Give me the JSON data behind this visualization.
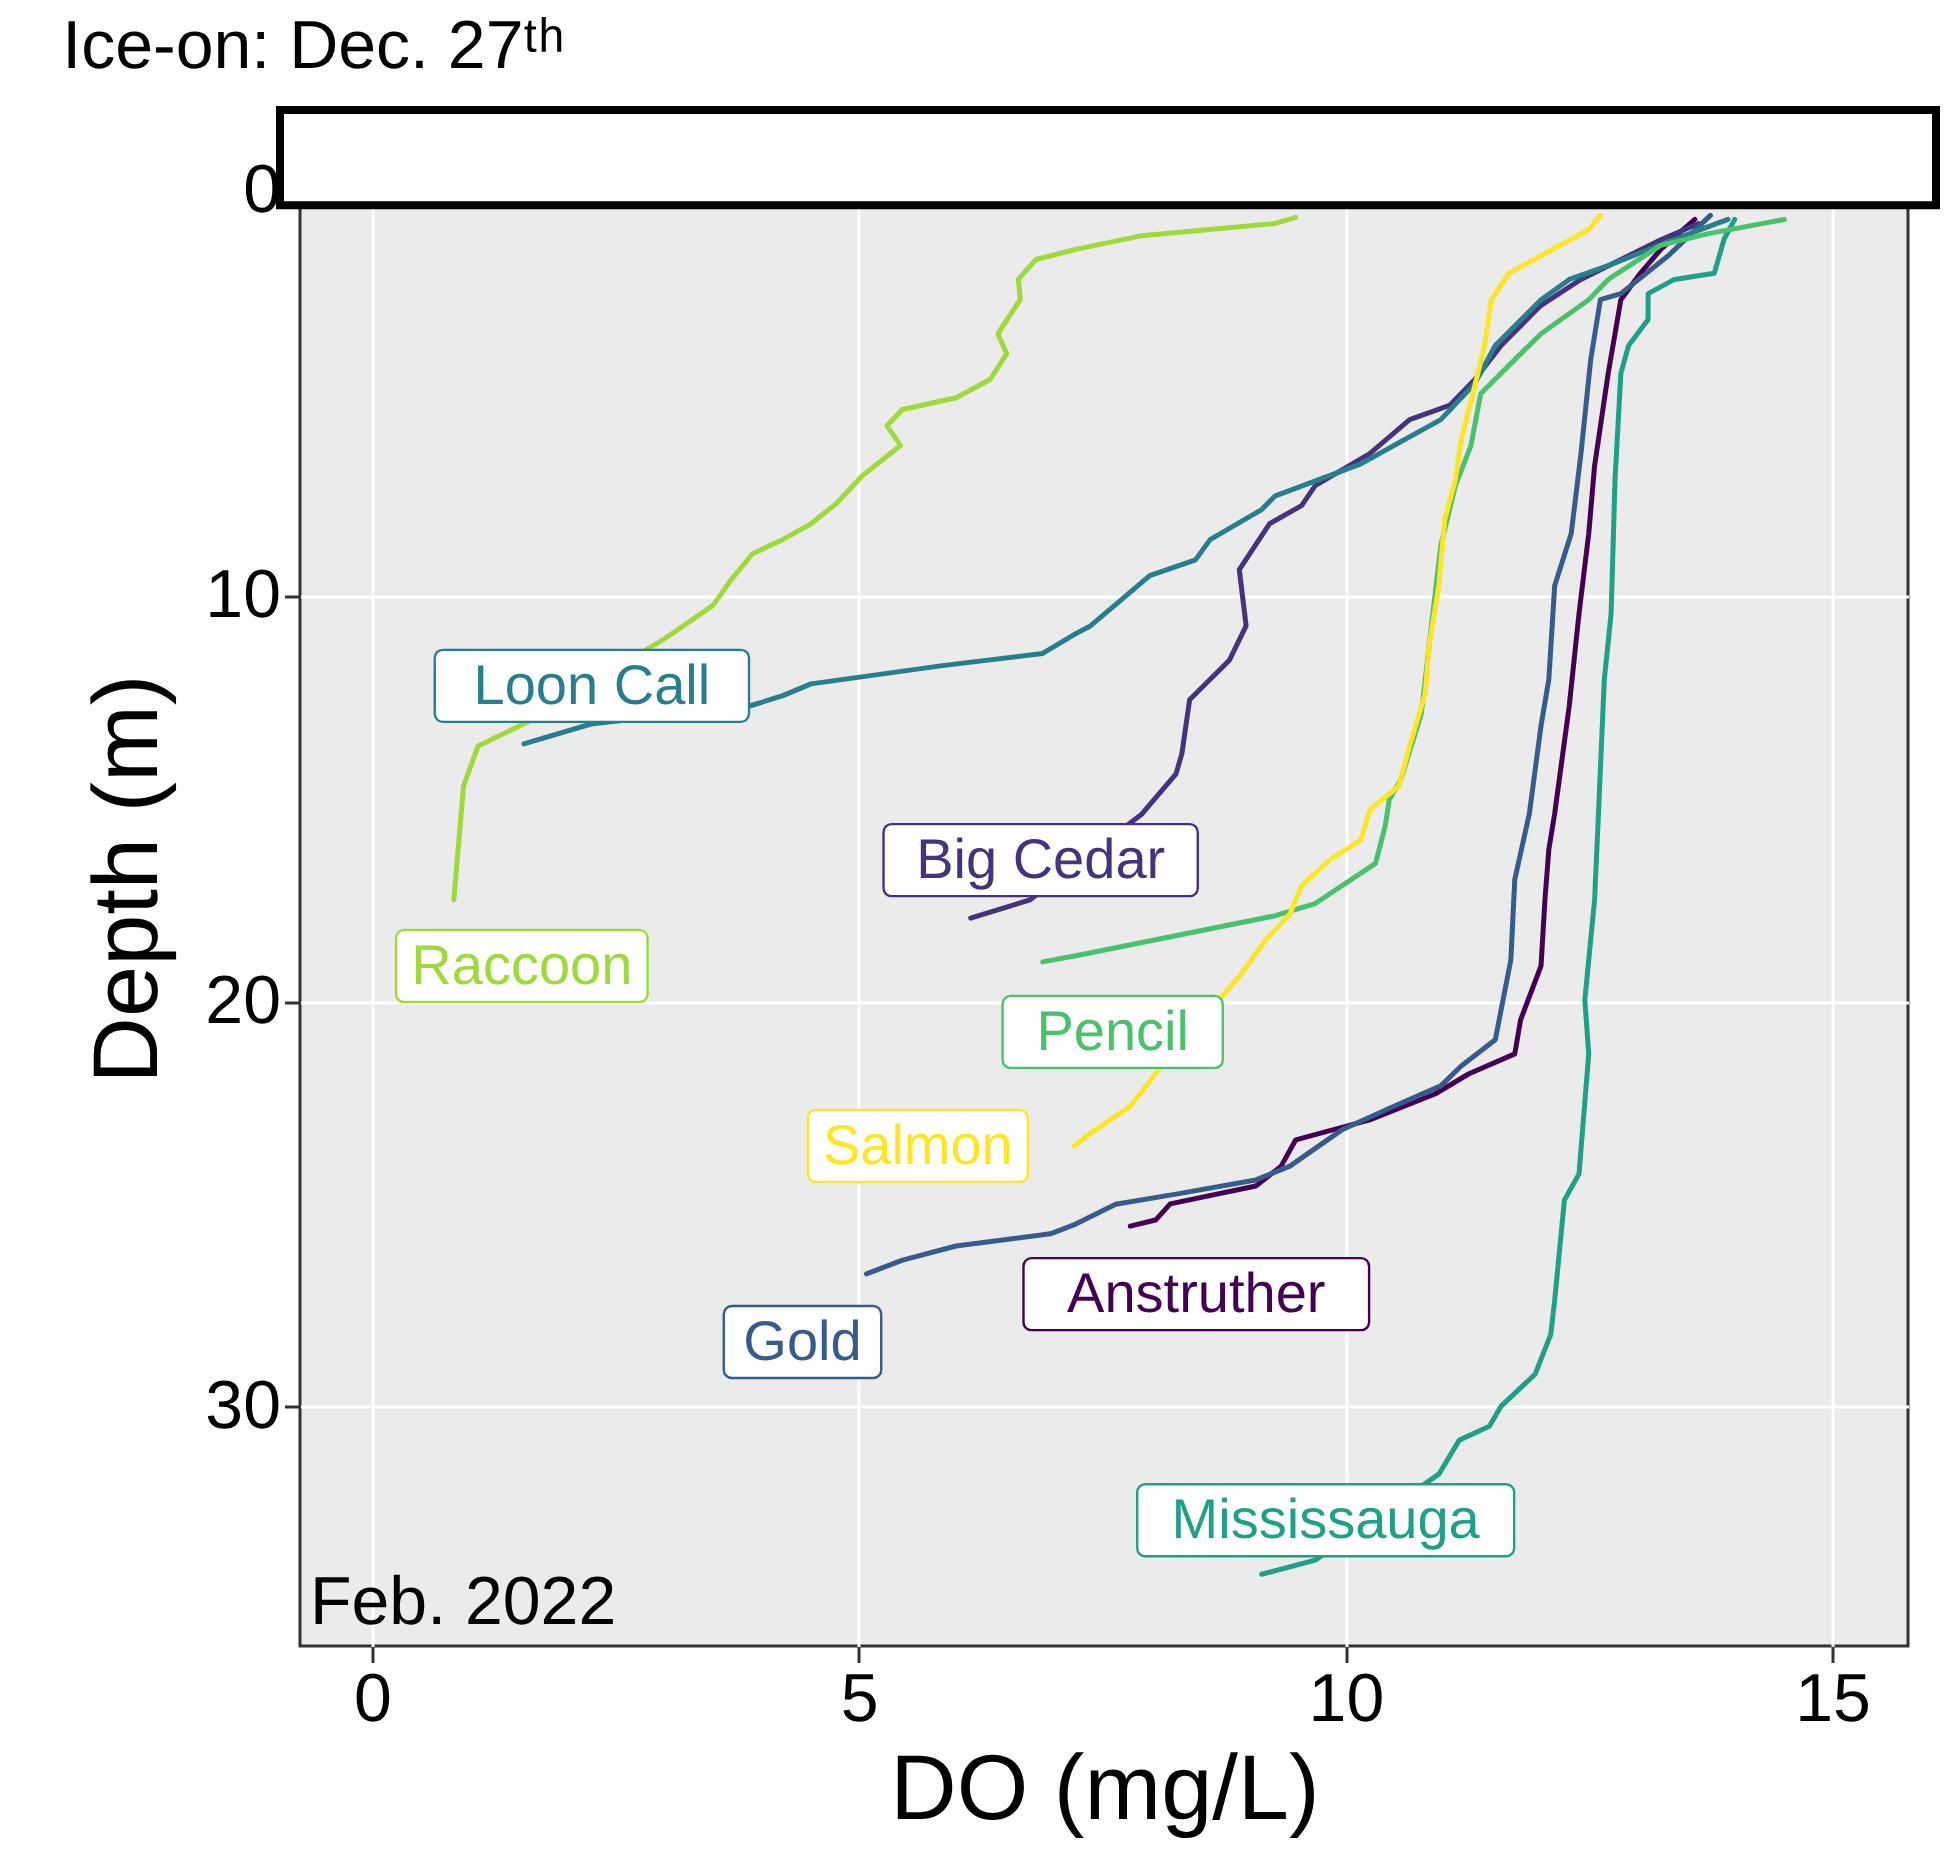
{
  "chart_data": {
    "type": "line",
    "title": "Ice-on: Dec. 27ᵗʰ",
    "xlabel": "DO (mg/L)",
    "ylabel": "Depth (m)",
    "xlim": [
      -0.74,
      15.78
    ],
    "xticks": [
      0,
      5,
      10,
      15
    ],
    "ylim": [
      35.9,
      -2.0
    ],
    "yticks": [
      0,
      10,
      20,
      30
    ],
    "grid": true,
    "legend": false,
    "annotations": [
      "Feb. 2022"
    ],
    "bands": [
      {
        "axis": "y",
        "from": -2.0,
        "to": 0.35,
        "color": "#ffffff"
      }
    ],
    "series": [
      {
        "name": "Anstruther",
        "color": "#440154",
        "x": [
          13.59,
          13.24,
          13.03,
          12.83,
          12.7,
          12.66,
          12.56,
          12.5,
          12.4,
          12.3,
          12.15,
          12.09,
          12.05,
          12.01,
          11.8,
          11.74,
          11.27,
          10.92,
          10.25,
          9.49,
          9.34,
          9.08,
          8.2,
          8.05,
          7.79
        ],
        "values": [
          0.7,
          1.44,
          2.03,
          2.68,
          4.5,
          5.15,
          6.78,
          8.45,
          10.43,
          12.7,
          15.36,
          16.25,
          17.49,
          19.12,
          20.45,
          21.29,
          21.78,
          22.28,
          22.92,
          23.41,
          24.06,
          24.55,
          24.99,
          25.39,
          25.54
        ]
      },
      {
        "name": "Big Cedar",
        "color": "#46337e",
        "x": [
          13.63,
          13.24,
          12.42,
          12.01,
          11.6,
          11.33,
          11.07,
          10.66,
          10.25,
          9.69,
          9.55,
          9.22,
          8.91,
          8.98,
          8.81,
          8.4,
          8.32,
          8.26,
          7.91,
          6.76,
          6.15
        ],
        "values": [
          0.8,
          1.2,
          2.18,
          2.82,
          3.81,
          4.65,
          5.29,
          5.64,
          6.48,
          7.27,
          7.76,
          8.21,
          9.34,
          10.73,
          11.57,
          12.55,
          13.88,
          14.38,
          15.37,
          17.49,
          17.94
        ]
      },
      {
        "name": "Gold",
        "color": "#365c8d",
        "x": [
          13.75,
          13.32,
          12.83,
          12.62,
          12.52,
          12.42,
          12.32,
          12.15,
          12.09,
          12.01,
          11.89,
          11.74,
          11.7,
          11.54,
          11.19,
          10.98,
          10.51,
          9.96,
          9.43,
          9.08,
          8.26,
          7.64,
          7.23,
          6.97,
          6.0,
          5.45,
          5.08
        ],
        "values": [
          0.6,
          1.59,
          2.53,
          2.68,
          4.16,
          6.48,
          8.45,
          9.74,
          12.05,
          13.19,
          15.36,
          16.99,
          18.97,
          20.94,
          21.59,
          22.08,
          22.57,
          23.17,
          24.06,
          24.4,
          24.75,
          25.0,
          25.49,
          25.73,
          26.03,
          26.38,
          26.72
        ]
      },
      {
        "name": "Loon Call",
        "color": "#277f8e",
        "x": [
          13.93,
          13.38,
          12.7,
          12.3,
          12.01,
          11.54,
          11.33,
          10.98,
          10.16,
          9.28,
          9.14,
          8.61,
          8.46,
          7.99,
          7.7,
          7.38,
          7.23,
          6.89,
          5.86,
          4.51,
          4.22,
          3.89,
          2.25,
          1.56
        ],
        "values": [
          0.7,
          1.19,
          1.84,
          2.18,
          2.68,
          3.81,
          4.75,
          5.64,
          6.73,
          7.52,
          7.86,
          8.6,
          9.1,
          9.49,
          10.08,
          10.73,
          10.92,
          11.41,
          11.71,
          12.16,
          12.45,
          12.7,
          13.15,
          13.64
        ]
      },
      {
        "name": "Mississauga",
        "color": "#1fa187",
        "x": [
          14.0,
          13.89,
          13.79,
          13.38,
          13.11,
          13.11,
          12.91,
          12.83,
          12.77,
          12.73,
          12.66,
          12.6,
          12.56,
          12.46,
          12.5,
          12.4,
          12.25,
          12.15,
          12.11,
          11.95,
          11.6,
          11.48,
          11.17,
          10.96,
          9.69,
          9.14
        ],
        "values": [
          0.7,
          1.19,
          2.03,
          2.18,
          2.53,
          3.17,
          3.81,
          4.5,
          7.12,
          10.43,
          12.05,
          15.36,
          17.49,
          19.96,
          21.29,
          24.25,
          24.9,
          27.37,
          28.21,
          29.19,
          29.98,
          30.48,
          30.82,
          31.66,
          33.78,
          34.13
        ]
      },
      {
        "name": "Pencil",
        "color": "#4ac16d",
        "x": [
          14.51,
          13.73,
          13.24,
          12.7,
          12.5,
          12.01,
          11.74,
          11.39,
          11.29,
          11.13,
          10.98,
          10.86,
          10.78,
          10.57,
          10.45,
          10.41,
          10.31,
          9.69,
          9.28,
          7.23,
          6.89
        ],
        "values": [
          0.7,
          1.05,
          1.34,
          2.18,
          2.68,
          3.52,
          4.16,
          5.0,
          6.28,
          7.27,
          8.75,
          11.22,
          12.9,
          14.52,
          15.02,
          15.66,
          16.59,
          17.58,
          17.88,
          18.87,
          19.02
        ]
      },
      {
        "name": "Raccoon",
        "color": "#9fda3a",
        "x": [
          9.49,
          9.28,
          7.91,
          7.23,
          6.82,
          6.64,
          6.66,
          6.43,
          6.52,
          6.35,
          6.0,
          5.45,
          5.29,
          5.43,
          5.04,
          4.77,
          4.51,
          4.22,
          3.91,
          3.69,
          3.5,
          2.99,
          1.64,
          1.09,
          0.94,
          0.84
        ],
        "values": [
          0.65,
          0.8,
          1.1,
          1.44,
          1.69,
          2.18,
          2.68,
          3.52,
          4.01,
          4.65,
          5.1,
          5.39,
          5.79,
          6.28,
          7.02,
          7.71,
          8.21,
          8.6,
          8.95,
          9.59,
          10.23,
          11.07,
          13.05,
          13.69,
          14.68,
          17.49
        ]
      },
      {
        "name": "Salmon",
        "color": "#fde725",
        "x": [
          12.62,
          12.5,
          11.68,
          11.5,
          11.43,
          11.33,
          11.19,
          11.13,
          11.02,
          10.96,
          10.86,
          10.82,
          10.66,
          10.55,
          10.25,
          10.16,
          9.84,
          9.55,
          9.43,
          9.18,
          8.93,
          8.11,
          7.79,
          7.4,
          7.21
        ],
        "values": [
          0.6,
          0.95,
          2.03,
          2.68,
          3.81,
          4.8,
          6.13,
          7.12,
          8.11,
          9.74,
          11.22,
          12.4,
          13.69,
          14.68,
          15.27,
          16.01,
          16.5,
          17.14,
          17.84,
          18.48,
          19.32,
          21.59,
          22.58,
          23.22,
          23.56
        ]
      }
    ]
  }
}
